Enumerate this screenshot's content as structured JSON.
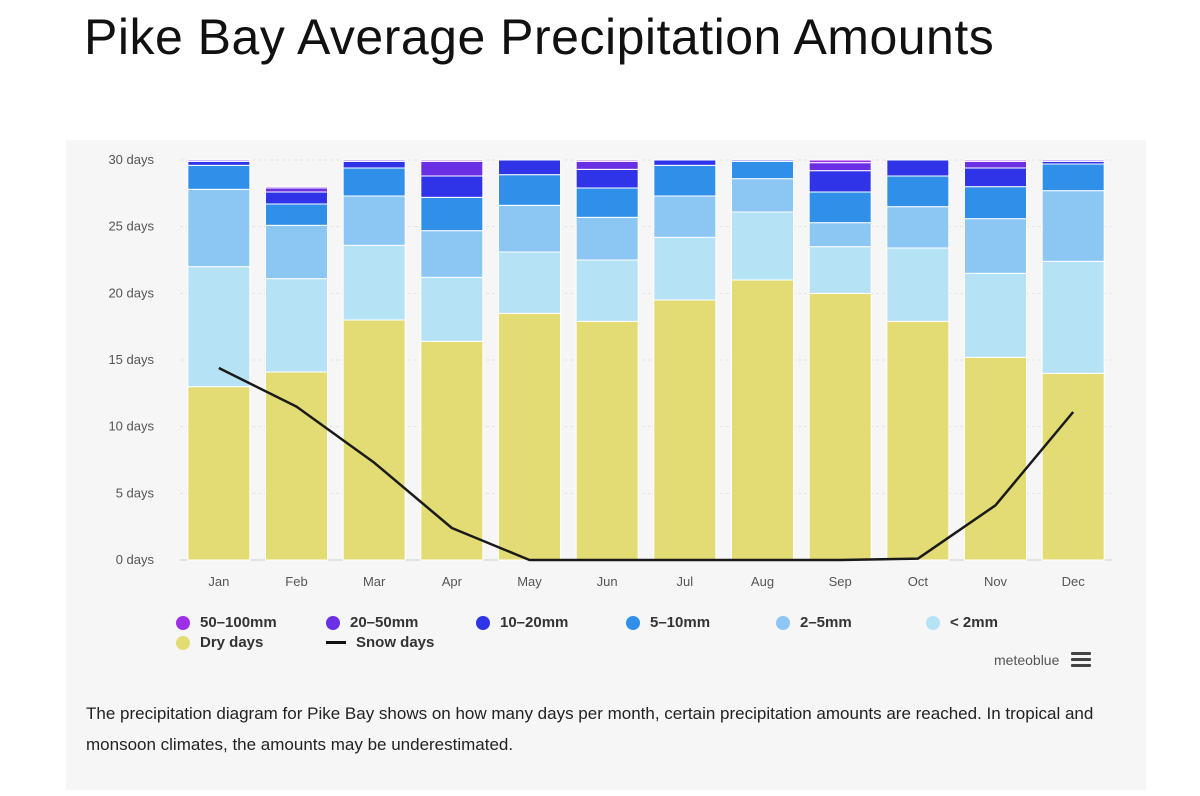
{
  "page": {
    "title": "Pike Bay Average Precipitation Amounts",
    "caption": "The precipitation diagram for Pike Bay shows on how many days per month, certain precipitation amounts are reached. In tropical and monsoon climates, the amounts may be underestimated.",
    "credit": "meteoblue"
  },
  "chart_data": {
    "type": "bar",
    "stacked": true,
    "title": "",
    "xlabel": "",
    "ylabel": "",
    "ylim": [
      0,
      30
    ],
    "yticks": [
      0,
      5,
      10,
      15,
      20,
      25,
      30
    ],
    "ytick_suffix": " days",
    "categories": [
      "Jan",
      "Feb",
      "Mar",
      "Apr",
      "May",
      "Jun",
      "Jul",
      "Aug",
      "Sep",
      "Oct",
      "Nov",
      "Dec"
    ],
    "series": [
      {
        "name": "Dry days",
        "color": "#e3dc74",
        "values": [
          13.0,
          14.1,
          18.0,
          16.4,
          18.5,
          17.9,
          19.5,
          21.0,
          20.0,
          17.9,
          15.2,
          14.0
        ]
      },
      {
        "name": "< 2mm",
        "color": "#b5e2f5",
        "values": [
          9.0,
          7.0,
          5.6,
          4.8,
          4.6,
          4.6,
          4.7,
          5.1,
          3.5,
          5.5,
          6.3,
          8.4
        ]
      },
      {
        "name": "2-5mm",
        "color": "#8cc7f4",
        "values": [
          5.8,
          4.0,
          3.7,
          3.5,
          3.5,
          3.2,
          3.1,
          2.5,
          1.8,
          3.1,
          4.1,
          5.3
        ]
      },
      {
        "name": "5-10mm",
        "color": "#2f8fe9",
        "values": [
          1.8,
          1.6,
          2.1,
          2.5,
          2.3,
          2.2,
          2.3,
          1.3,
          2.3,
          2.3,
          2.4,
          2.0
        ]
      },
      {
        "name": "10-20mm",
        "color": "#2f34e8",
        "values": [
          0.3,
          0.9,
          0.5,
          1.6,
          1.1,
          1.4,
          0.4,
          0.1,
          1.6,
          1.2,
          1.4,
          0.2
        ]
      },
      {
        "name": "20-50mm",
        "color": "#6b2fe6",
        "values": [
          0.1,
          0.3,
          0.1,
          1.1,
          0.0,
          0.6,
          0.0,
          0.0,
          0.6,
          0.0,
          0.5,
          0.1
        ]
      },
      {
        "name": "50-100mm",
        "color": "#9d2fe6",
        "values": [
          0.0,
          0.1,
          0.0,
          0.1,
          0.0,
          0.1,
          0.0,
          0.0,
          0.2,
          0.0,
          0.1,
          0.0
        ]
      }
    ],
    "line_series": {
      "name": "Snow days",
      "color": "#1a1a1a",
      "values": [
        14.4,
        11.5,
        7.3,
        2.4,
        0.0,
        0.0,
        0.0,
        0.0,
        0.0,
        0.1,
        4.1,
        11.1
      ]
    },
    "legend": [
      {
        "label": "50–100mm",
        "color": "#9d2fe6",
        "kind": "dot"
      },
      {
        "label": "20–50mm",
        "color": "#6b2fe6",
        "kind": "dot"
      },
      {
        "label": "10–20mm",
        "color": "#2f34e8",
        "kind": "dot"
      },
      {
        "label": "5–10mm",
        "color": "#2f8fe9",
        "kind": "dot"
      },
      {
        "label": "2–5mm",
        "color": "#8cc7f4",
        "kind": "dot"
      },
      {
        "label": "< 2mm",
        "color": "#b5e2f5",
        "kind": "dot"
      },
      {
        "label": "Dry days",
        "color": "#e3dc74",
        "kind": "dot"
      },
      {
        "label": "Snow days",
        "color": "#1a1a1a",
        "kind": "line"
      }
    ],
    "legend_placement": "bottom"
  }
}
